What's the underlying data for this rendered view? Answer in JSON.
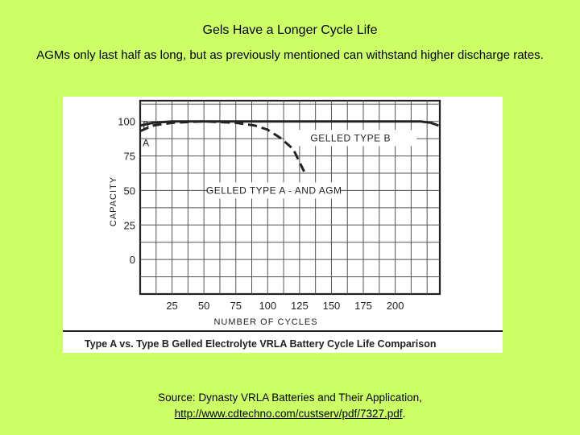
{
  "slide": {
    "title": "Gels Have a Longer Cycle Life",
    "subtitle": "AGMs only last half as long, but as previously mentioned can withstand higher discharge rates.",
    "source_line": "Source: Dynasty VRLA Batteries and Their Application,",
    "source_link": "http://www.cdtechno.com/custserv/pdf/7327.pdf",
    "source_end": "."
  },
  "chart_data": {
    "type": "line",
    "title": "Type A vs. Type B Gelled Electrolyte VRLA Battery Cycle Life Comparison",
    "xlabel": "NUMBER OF CYCLES",
    "ylabel": "CAPACITY",
    "x_ticks": [
      25,
      50,
      75,
      100,
      125,
      150,
      175,
      200
    ],
    "y_ticks": [
      0,
      25,
      50,
      75,
      100
    ],
    "xlim": [
      0,
      235
    ],
    "ylim": [
      -25,
      115
    ],
    "grid": true,
    "series": [
      {
        "name": "GELLED TYPE B",
        "end_label": "B",
        "style": "solid",
        "x": [
          0,
          10,
          25,
          50,
          100,
          150,
          200,
          220,
          228,
          234
        ],
        "y": [
          97,
          99,
          100,
          100,
          100,
          100,
          100,
          100,
          99,
          97
        ]
      },
      {
        "name": "GELLED TYPE A - AND AGM",
        "end_label": "A",
        "style": "dashed",
        "x": [
          0,
          10,
          25,
          50,
          75,
          90,
          100,
          110,
          120,
          130
        ],
        "y": [
          93,
          97,
          99,
          100,
          99,
          97,
          94,
          88,
          80,
          61
        ]
      }
    ]
  }
}
